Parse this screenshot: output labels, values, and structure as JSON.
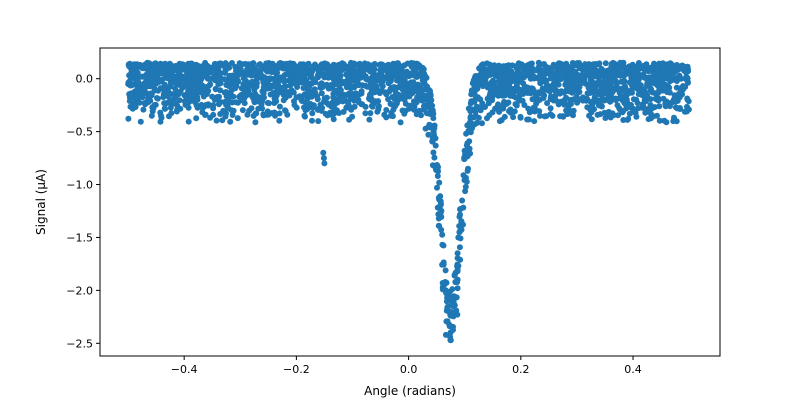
{
  "chart_data": {
    "type": "scatter",
    "title": "",
    "xlabel": "Angle (radians)",
    "ylabel": "Signal (μA)",
    "xlim": [
      -0.55,
      0.555
    ],
    "ylim": [
      -2.62,
      0.29
    ],
    "xticks": [
      -0.4,
      -0.2,
      0.0,
      0.2,
      0.4
    ],
    "xtick_labels": [
      "−0.4",
      "−0.2",
      "0.0",
      "0.2",
      "0.4"
    ],
    "yticks": [
      0.0,
      -0.5,
      -1.0,
      -1.5,
      -2.0,
      -2.5
    ],
    "ytick_labels": [
      "0.0",
      "−0.5",
      "−1.0",
      "−1.5",
      "−2.0",
      "−2.5"
    ],
    "grid": false,
    "legend": "none",
    "series": [
      {
        "color": "#1f77b4",
        "x_range": [
          -0.5,
          0.5
        ],
        "baseline_band": [
          -0.43,
          0.15
        ],
        "dip_center_x": 0.075,
        "dip_min_y": -2.47,
        "outliers": [
          {
            "x": -0.152,
            "y": -0.7
          },
          {
            "x": -0.151,
            "y": -0.75
          },
          {
            "x": -0.15,
            "y": -0.8
          }
        ]
      }
    ]
  }
}
